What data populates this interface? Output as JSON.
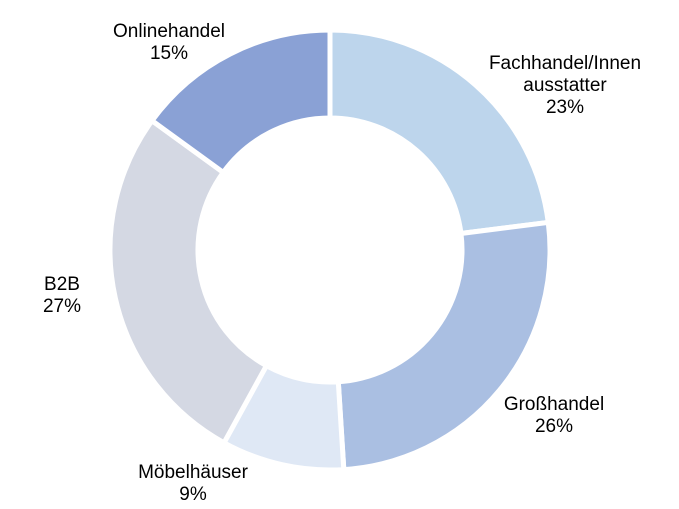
{
  "chart_data": {
    "type": "pie",
    "subtype": "donut",
    "unit": "%",
    "direction": "clockwise",
    "start_angle_deg": 0,
    "inner_radius_ratio": 0.6,
    "slice_gap_color": "#FFFFFF",
    "background_color": "#FFFFFF",
    "label_color": "#000000",
    "categories": [
      "Fachhandel/Innenausstatter",
      "Großhandel",
      "Möbelhäuser",
      "B2B",
      "Onlinehandel"
    ],
    "values": [
      23,
      26,
      9,
      27,
      15
    ],
    "segments": [
      {
        "name": "Fachhandel/Innenausstatter",
        "value": 23,
        "color": "#BDD5EC",
        "display_text": "Fachhandel/Innen\nausstatter\n23%"
      },
      {
        "name": "Großhandel",
        "value": 26,
        "color": "#AABFE2",
        "display_text": "Großhandel\n26%"
      },
      {
        "name": "Möbelhäuser",
        "value": 9,
        "color": "#DFE8F5",
        "display_text": "Möbelhäuser\n9%"
      },
      {
        "name": "B2B",
        "value": 27,
        "color": "#D4D8E3",
        "display_text": "B2B\n27%"
      },
      {
        "name": "Onlinehandel",
        "value": 15,
        "color": "#8AA1D5",
        "display_text": "Onlinehandel\n15%"
      }
    ]
  }
}
